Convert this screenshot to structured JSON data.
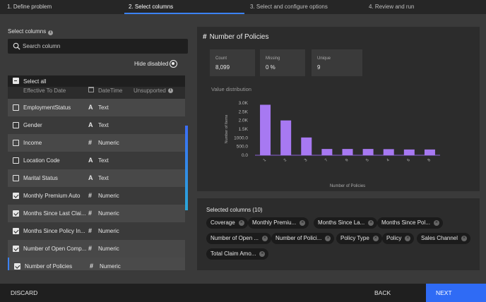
{
  "steps": [
    {
      "label": "1. Define problem"
    },
    {
      "label": "2. Select columns"
    },
    {
      "label": "3. Select and configure options"
    },
    {
      "label": "4. Review and run"
    }
  ],
  "left": {
    "select_columns_label": "Select columns",
    "search_placeholder": "Search column",
    "hide_disabled": "Hide disabled",
    "select_all": "Select all",
    "partial_row": {
      "name": "Effective To Date",
      "type": "DateTime",
      "status": "Unsupported"
    },
    "rows": [
      {
        "name": "EmploymentStatus",
        "type_icon": "A",
        "type": "Text",
        "checked": false
      },
      {
        "name": "Gender",
        "type_icon": "A",
        "type": "Text",
        "checked": false
      },
      {
        "name": "Income",
        "type_icon": "#",
        "type": "Numeric",
        "checked": false
      },
      {
        "name": "Location Code",
        "type_icon": "A",
        "type": "Text",
        "checked": false
      },
      {
        "name": "Marital Status",
        "type_icon": "A",
        "type": "Text",
        "checked": false
      },
      {
        "name": "Monthly Premium Auto",
        "type_icon": "#",
        "type": "Numeric",
        "checked": true
      },
      {
        "name": "Months Since Last Clai...",
        "type_icon": "#",
        "type": "Numeric",
        "checked": true
      },
      {
        "name": "Months Since Policy In...",
        "type_icon": "#",
        "type": "Numeric",
        "checked": true
      },
      {
        "name": "Number of Open Comp...",
        "type_icon": "#",
        "type": "Numeric",
        "checked": true
      },
      {
        "name": "Number of Policies",
        "type_icon": "#",
        "type": "Numeric",
        "checked": true
      }
    ]
  },
  "detail": {
    "hash": "#",
    "title": "Number of Policies",
    "stats": [
      {
        "label": "Count",
        "value": "8,099"
      },
      {
        "label": "Missing",
        "value": "0 %"
      },
      {
        "label": "Unique",
        "value": "9"
      }
    ],
    "value_distribution_label": "Value distribution"
  },
  "chart_data": {
    "type": "bar",
    "categories": [
      "1",
      "2",
      "3",
      "7",
      "9",
      "5",
      "4",
      "6",
      "8"
    ],
    "values": [
      2900,
      2000,
      1020,
      360,
      360,
      360,
      350,
      330,
      330
    ],
    "xlabel": "Number of Policies",
    "ylabel": "Number of Items",
    "ylim": [
      0,
      3000
    ],
    "yticks": [
      "0.0",
      "500.0",
      "1000.0",
      "1.5K",
      "2.0K",
      "2.5K",
      "3.0K"
    ],
    "bar_color": "#a779f2"
  },
  "selected": {
    "title": "Selected columns (10)",
    "chips": [
      "Coverage",
      "Monthly Premiu...",
      "Months Since La...",
      "Months Since Pol...",
      "Number of Open ...",
      "Number of Polici...",
      "Policy Type",
      "Policy",
      "Sales Channel",
      "Total Claim Amo..."
    ]
  },
  "footer": {
    "discard": "DISCARD",
    "back": "BACK",
    "next": "NEXT"
  },
  "colors": {
    "accent": "#2f6bf5",
    "bar": "#a779f2"
  }
}
